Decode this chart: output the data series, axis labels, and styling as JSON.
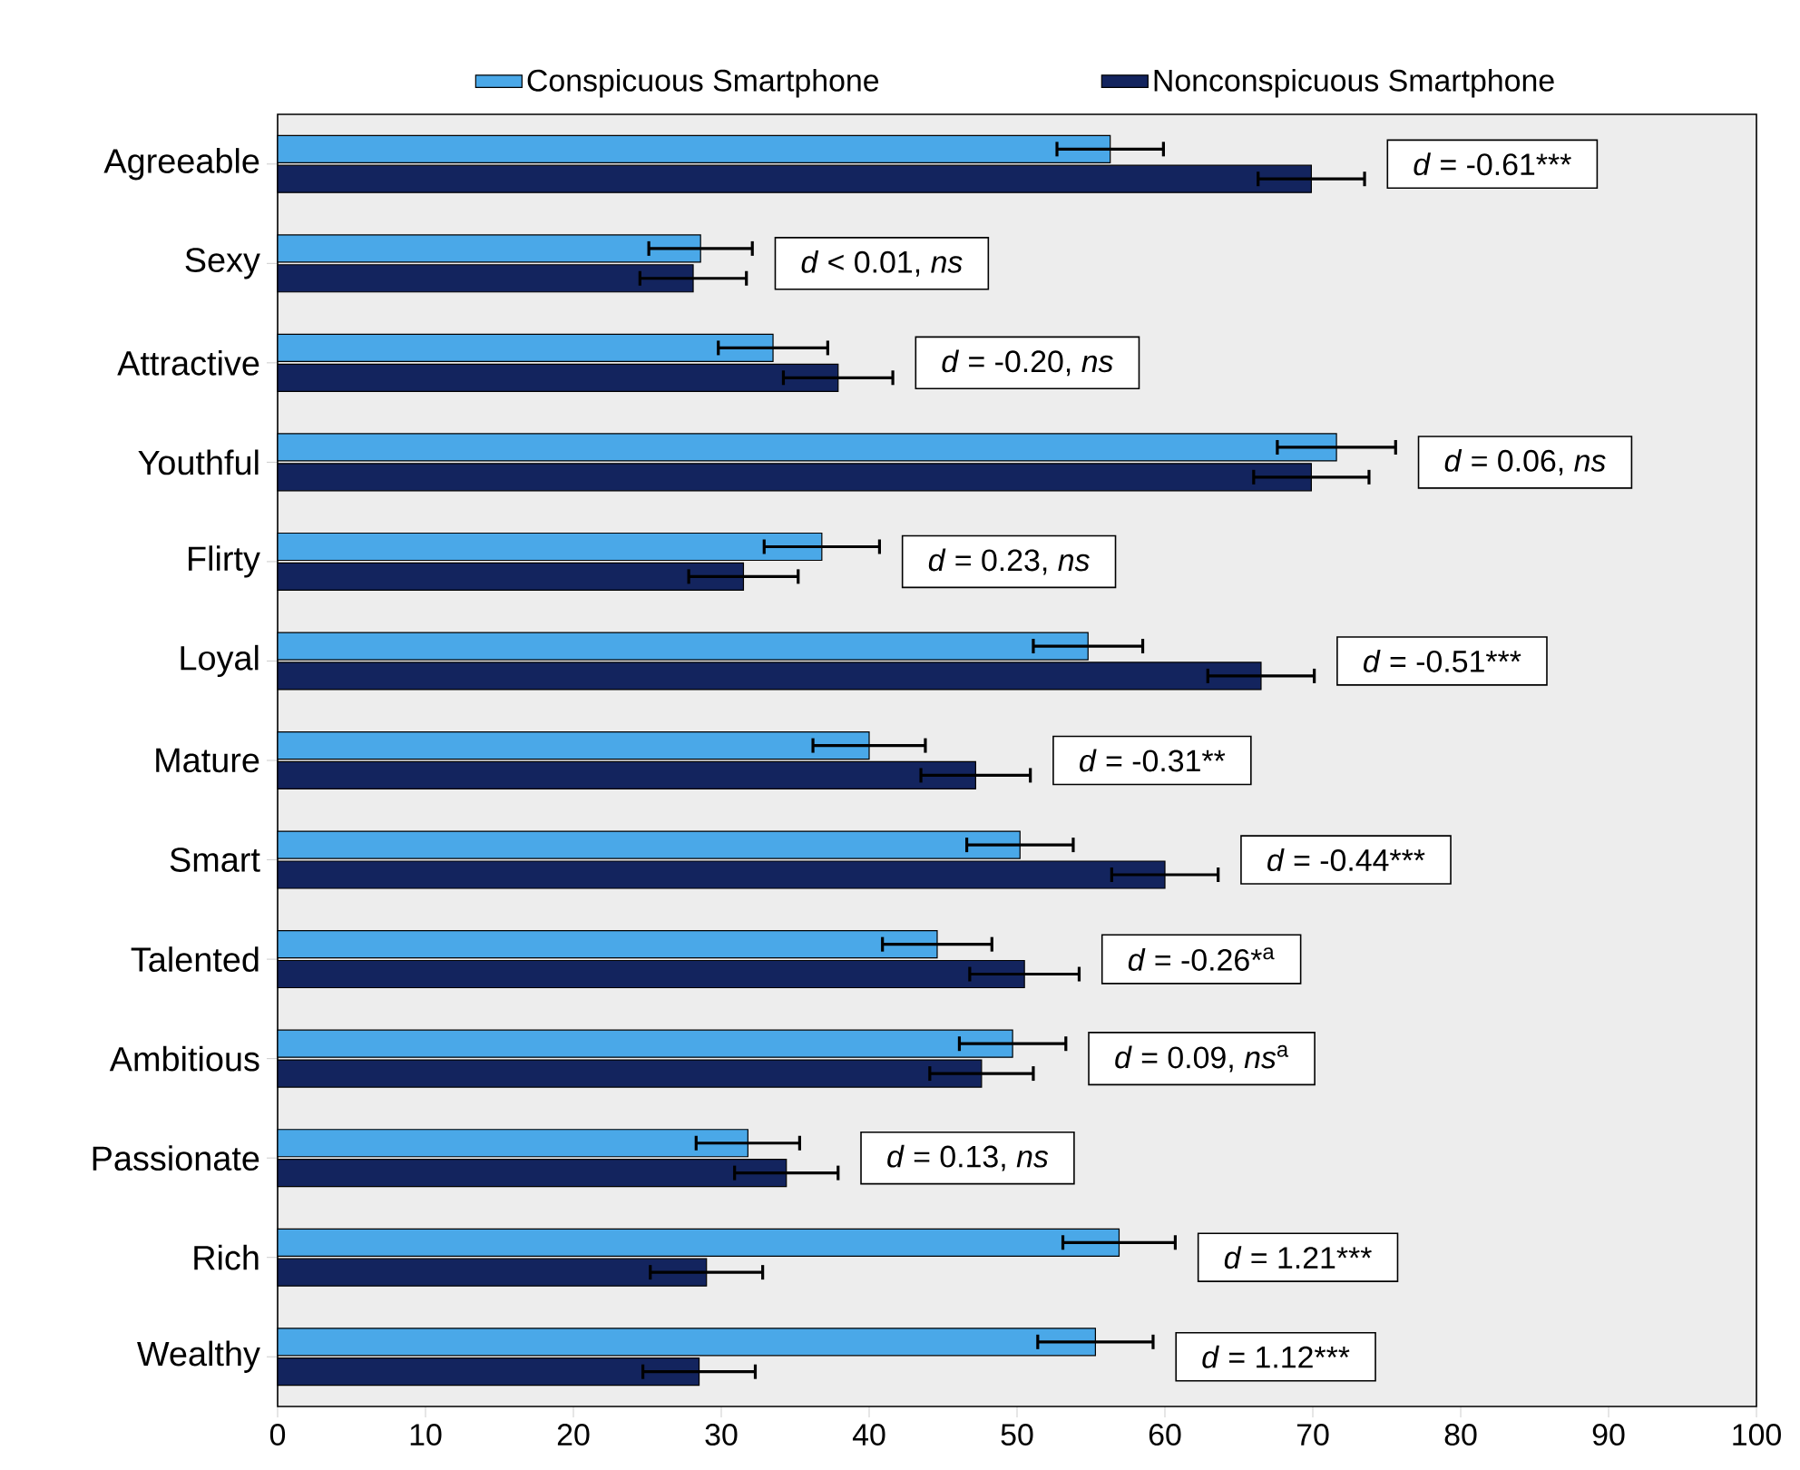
{
  "chart_data": {
    "type": "bar",
    "orientation": "horizontal",
    "categories": [
      "Agreeable",
      "Sexy",
      "Attractive",
      "Youthful",
      "Flirty",
      "Loyal",
      "Mature",
      "Smart",
      "Talented",
      "Ambitious",
      "Passionate",
      "Rich",
      "Wealthy"
    ],
    "series": [
      {
        "name": "Conspicuous Smartphone",
        "color": "#4aa8e8",
        "values": [
          56.3,
          28.6,
          33.5,
          71.6,
          36.8,
          54.8,
          40.0,
          50.2,
          44.6,
          49.7,
          31.8,
          56.9,
          55.3
        ],
        "errors": [
          3.6,
          3.5,
          3.7,
          4.0,
          3.9,
          3.7,
          3.8,
          3.6,
          3.7,
          3.6,
          3.5,
          3.8,
          3.9
        ]
      },
      {
        "name": "Nonconspicuous Smartphone",
        "color": "#13245e",
        "values": [
          69.9,
          28.1,
          37.9,
          69.9,
          31.5,
          66.5,
          47.2,
          60.0,
          50.5,
          47.6,
          34.4,
          29.0,
          28.5
        ],
        "errors": [
          3.6,
          3.6,
          3.7,
          3.9,
          3.7,
          3.6,
          3.7,
          3.6,
          3.7,
          3.5,
          3.5,
          3.8,
          3.8
        ]
      }
    ],
    "xlim": [
      0,
      100
    ],
    "xticks": [
      0,
      10,
      20,
      30,
      40,
      50,
      60,
      70,
      80,
      90,
      100
    ],
    "legend": "top",
    "annotations": [
      "*d* = -0.61***",
      "*d* < 0.01, *ns*",
      "*d* = -0.20, *ns*",
      "*d* = 0.06, *ns*",
      "*d* = 0.23, *ns*",
      "*d* = -0.51***",
      "*d* = -0.31**",
      "*d* = -0.44***",
      "*d* = -0.26*$^{a}$",
      "*d* = 0.09, *ns*$^{a}$",
      "*d* = 0.13, *ns*",
      "*d* = 1.21***",
      "*d* = 1.12***"
    ]
  }
}
